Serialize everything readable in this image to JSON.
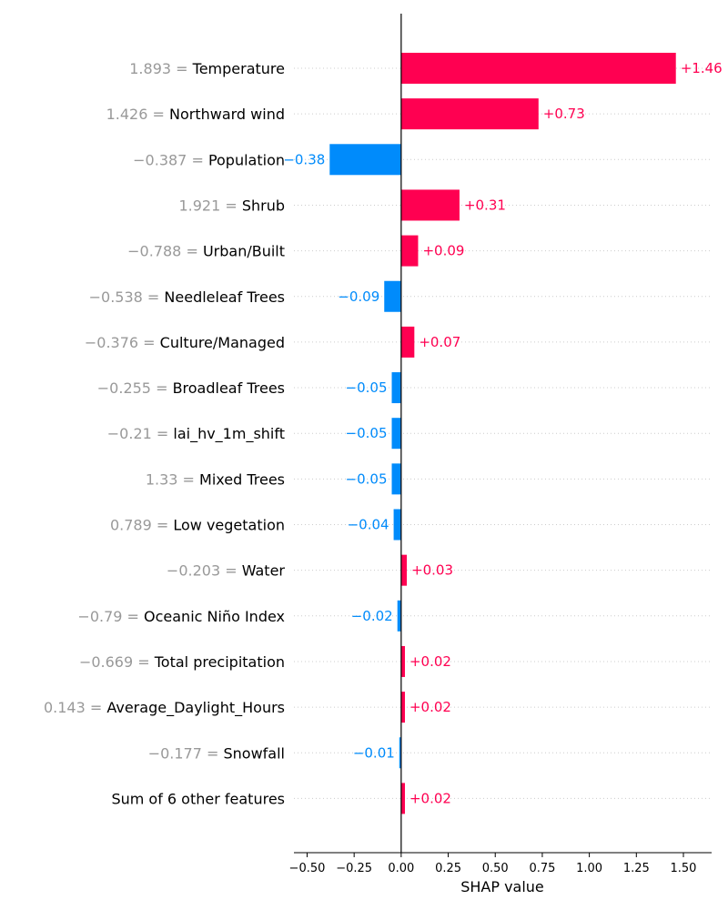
{
  "chart_data": {
    "type": "bar",
    "orientation": "horizontal",
    "xlabel": "SHAP value",
    "xlim": [
      -0.57,
      1.65
    ],
    "xticks": [
      -0.5,
      -0.25,
      0.0,
      0.25,
      0.5,
      0.75,
      1.0,
      1.25,
      1.5
    ],
    "xtick_labels": [
      "−0.50",
      "−0.25",
      "0.00",
      "0.25",
      "0.50",
      "0.75",
      "1.00",
      "1.25",
      "1.50"
    ],
    "colors": {
      "positive": "#ff0051",
      "negative": "#008bfb",
      "feature_value": "#999999",
      "grid": "#cccccc"
    },
    "features": [
      {
        "value": "1.893",
        "name": "Temperature",
        "shap": 1.46,
        "label": "+1.46"
      },
      {
        "value": "1.426",
        "name": "Northward wind",
        "shap": 0.73,
        "label": "+0.73"
      },
      {
        "value": "−0.387",
        "name": "Population",
        "shap": -0.38,
        "label": "−0.38"
      },
      {
        "value": "1.921",
        "name": "Shrub",
        "shap": 0.31,
        "label": "+0.31"
      },
      {
        "value": "−0.788",
        "name": "Urban/Built",
        "shap": 0.09,
        "label": "+0.09"
      },
      {
        "value": "−0.538",
        "name": "Needleleaf Trees",
        "shap": -0.09,
        "label": "−0.09"
      },
      {
        "value": "−0.376",
        "name": "Culture/Managed",
        "shap": 0.07,
        "label": "+0.07"
      },
      {
        "value": "−0.255",
        "name": "Broadleaf Trees",
        "shap": -0.05,
        "label": "−0.05"
      },
      {
        "value": "−0.21",
        "name": "lai_hv_1m_shift",
        "shap": -0.05,
        "label": "−0.05"
      },
      {
        "value": "1.33",
        "name": "Mixed Trees",
        "shap": -0.05,
        "label": "−0.05"
      },
      {
        "value": "0.789",
        "name": "Low vegetation",
        "shap": -0.04,
        "label": "−0.04"
      },
      {
        "value": "−0.203",
        "name": "Water",
        "shap": 0.03,
        "label": "+0.03"
      },
      {
        "value": "−0.79",
        "name": "Oceanic Niño Index",
        "shap": -0.02,
        "label": "−0.02"
      },
      {
        "value": "−0.669",
        "name": "Total precipitation",
        "shap": 0.02,
        "label": "+0.02"
      },
      {
        "value": "0.143",
        "name": "Average_Daylight_Hours",
        "shap": 0.02,
        "label": "+0.02"
      },
      {
        "value": "−0.177",
        "name": "Snowfall",
        "shap": -0.01,
        "label": "−0.01"
      },
      {
        "value": "",
        "name": "Sum of 6 other features",
        "shap": 0.02,
        "label": "+0.02"
      }
    ]
  }
}
